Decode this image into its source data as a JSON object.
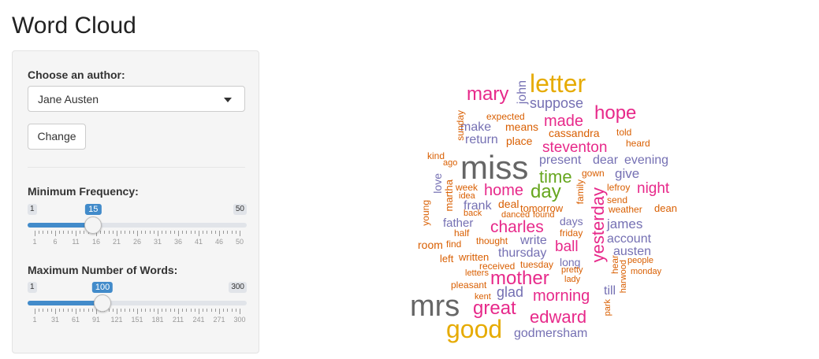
{
  "title": "Word Cloud",
  "sidebar": {
    "author_label": "Choose an author:",
    "author_value": "Jane Austen",
    "change_button": "Change",
    "min_freq": {
      "label": "Minimum Frequency:",
      "min": "1",
      "max": "50",
      "value": "15",
      "grid": [
        "1",
        "6",
        "11",
        "16",
        "21",
        "26",
        "31",
        "36",
        "41",
        "46",
        "50"
      ]
    },
    "max_words": {
      "label": "Maximum Number of Words:",
      "min": "1",
      "max": "300",
      "value": "100",
      "grid": [
        "1",
        "31",
        "61",
        "91",
        "121",
        "151",
        "181",
        "211",
        "241",
        "271",
        "300"
      ]
    }
  },
  "colors": {
    "accent": "#428bca",
    "orange": "#d95f02",
    "purple": "#7570b3",
    "pink": "#e7298a",
    "green": "#66a61e",
    "gold": "#e6ab02",
    "gray": "#666666"
  },
  "word_cloud": [
    {
      "w": "letter",
      "c": "gold"
    },
    {
      "w": "mary",
      "c": "pink"
    },
    {
      "w": "john",
      "c": "purple"
    },
    {
      "w": "suppose",
      "c": "purple"
    },
    {
      "w": "hope",
      "c": "pink"
    },
    {
      "w": "made",
      "c": "pink"
    },
    {
      "w": "expected",
      "c": "orange"
    },
    {
      "w": "means",
      "c": "orange"
    },
    {
      "w": "make",
      "c": "purple"
    },
    {
      "w": "sunday",
      "c": "orange"
    },
    {
      "w": "cassandra",
      "c": "orange"
    },
    {
      "w": "told",
      "c": "orange"
    },
    {
      "w": "return",
      "c": "purple"
    },
    {
      "w": "place",
      "c": "orange"
    },
    {
      "w": "steventon",
      "c": "pink"
    },
    {
      "w": "heard",
      "c": "orange"
    },
    {
      "w": "kind",
      "c": "orange"
    },
    {
      "w": "ago",
      "c": "orange"
    },
    {
      "w": "miss",
      "c": "gray"
    },
    {
      "w": "present",
      "c": "purple"
    },
    {
      "w": "dear",
      "c": "purple"
    },
    {
      "w": "evening",
      "c": "purple"
    },
    {
      "w": "time",
      "c": "green"
    },
    {
      "w": "gown",
      "c": "orange"
    },
    {
      "w": "give",
      "c": "purple"
    },
    {
      "w": "love",
      "c": "purple"
    },
    {
      "w": "week",
      "c": "orange"
    },
    {
      "w": "idea",
      "c": "orange"
    },
    {
      "w": "home",
      "c": "pink"
    },
    {
      "w": "day",
      "c": "green"
    },
    {
      "w": "family",
      "c": "orange"
    },
    {
      "w": "lefroy",
      "c": "orange"
    },
    {
      "w": "night",
      "c": "pink"
    },
    {
      "w": "martha",
      "c": "orange"
    },
    {
      "w": "yesterday",
      "c": "pink"
    },
    {
      "w": "deal",
      "c": "orange"
    },
    {
      "w": "send",
      "c": "orange"
    },
    {
      "w": "young",
      "c": "orange"
    },
    {
      "w": "frank",
      "c": "purple"
    },
    {
      "w": "tomorrow",
      "c": "orange"
    },
    {
      "w": "weather",
      "c": "orange"
    },
    {
      "w": "dean",
      "c": "orange"
    },
    {
      "w": "back",
      "c": "orange"
    },
    {
      "w": "danced",
      "c": "orange"
    },
    {
      "w": "found",
      "c": "orange"
    },
    {
      "w": "father",
      "c": "purple"
    },
    {
      "w": "charles",
      "c": "pink"
    },
    {
      "w": "days",
      "c": "purple"
    },
    {
      "w": "james",
      "c": "purple"
    },
    {
      "w": "half",
      "c": "orange"
    },
    {
      "w": "friday",
      "c": "orange"
    },
    {
      "w": "room",
      "c": "orange"
    },
    {
      "w": "find",
      "c": "orange"
    },
    {
      "w": "thought",
      "c": "orange"
    },
    {
      "w": "write",
      "c": "purple"
    },
    {
      "w": "account",
      "c": "purple"
    },
    {
      "w": "ball",
      "c": "pink"
    },
    {
      "w": "austen",
      "c": "purple"
    },
    {
      "w": "left",
      "c": "orange"
    },
    {
      "w": "written",
      "c": "orange"
    },
    {
      "w": "thursday",
      "c": "purple"
    },
    {
      "w": "long",
      "c": "purple"
    },
    {
      "w": "people",
      "c": "orange"
    },
    {
      "w": "received",
      "c": "orange"
    },
    {
      "w": "tuesday",
      "c": "orange"
    },
    {
      "w": "letters",
      "c": "orange"
    },
    {
      "w": "pretty",
      "c": "orange"
    },
    {
      "w": "monday",
      "c": "orange"
    },
    {
      "w": "hear",
      "c": "orange"
    },
    {
      "w": "mother",
      "c": "pink"
    },
    {
      "w": "lady",
      "c": "orange"
    },
    {
      "w": "harwood",
      "c": "orange"
    },
    {
      "w": "pleasant",
      "c": "orange"
    },
    {
      "w": "glad",
      "c": "purple"
    },
    {
      "w": "till",
      "c": "purple"
    },
    {
      "w": "kent",
      "c": "orange"
    },
    {
      "w": "mrs",
      "c": "gray"
    },
    {
      "w": "morning",
      "c": "pink"
    },
    {
      "w": "great",
      "c": "pink"
    },
    {
      "w": "park",
      "c": "orange"
    },
    {
      "w": "edward",
      "c": "pink"
    },
    {
      "w": "good",
      "c": "gold"
    },
    {
      "w": "godmersham",
      "c": "purple"
    }
  ]
}
